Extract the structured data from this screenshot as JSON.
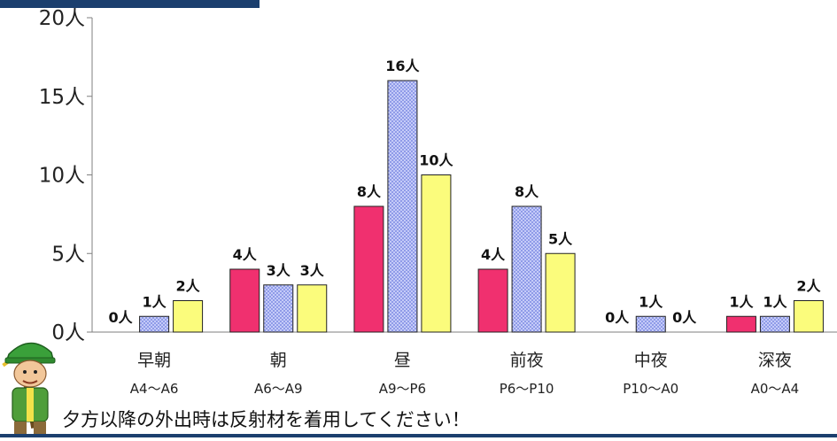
{
  "chart_data": {
    "type": "bar",
    "categories": [
      "早朝",
      "朝",
      "昼",
      "前夜",
      "中夜",
      "深夜"
    ],
    "sub_labels": [
      "A4〜A6",
      "A6〜A9",
      "A9〜P6",
      "P6〜P10",
      "P10〜A0",
      "A0〜A4"
    ],
    "series": [
      {
        "values": [
          0,
          4,
          8,
          4,
          0,
          1
        ],
        "color": "#f0306f",
        "pattern": "solid"
      },
      {
        "values": [
          1,
          3,
          16,
          8,
          1,
          1
        ],
        "color": "#9ea8f2",
        "pattern": "checker"
      },
      {
        "values": [
          2,
          3,
          10,
          5,
          0,
          2
        ],
        "color": "#fbfc7c",
        "pattern": "solid"
      }
    ],
    "data_labels": [
      [
        "0人",
        "4人",
        "8人",
        "4人",
        "0人",
        "1人"
      ],
      [
        "1人",
        "3人",
        "16人",
        "8人",
        "1人",
        "1人"
      ],
      [
        "2人",
        "3人",
        "10人",
        "5人",
        "0人",
        "2人"
      ]
    ],
    "y_ticks": [
      {
        "value": 0,
        "label": "0人"
      },
      {
        "value": 5,
        "label": "5人"
      },
      {
        "value": 10,
        "label": "10人"
      },
      {
        "value": 15,
        "label": "15人"
      },
      {
        "value": 20,
        "label": "20人"
      }
    ],
    "ylim": [
      0,
      20
    ],
    "grid": false,
    "legend": "none"
  },
  "footer_note": "夕方以降の外出時は反射材を着用してください！",
  "colors": {
    "brand_bar": "#1b3f6e"
  },
  "icons": {
    "mascot": "green-cap-mascot-icon"
  }
}
